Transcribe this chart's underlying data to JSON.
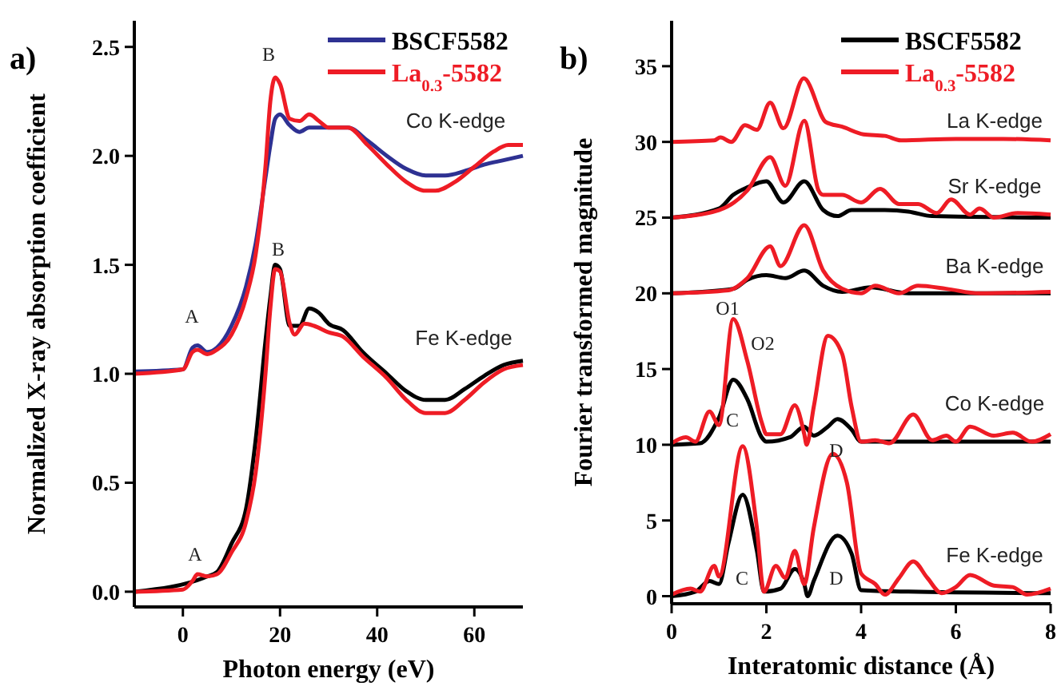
{
  "chart_data": [
    {
      "type": "line",
      "title": "a)",
      "xlabel": "Photon energy (eV)",
      "ylabel": "Normalized X-ray absorption coefficient",
      "xlim": [
        -10,
        70
      ],
      "ylim": [
        -0.07,
        2.62
      ],
      "xticks": [
        0,
        20,
        40,
        60
      ],
      "yticks": [
        {
          "value": 0,
          "label": "0.0"
        },
        {
          "value": 0.5,
          "label": "0.5"
        },
        {
          "value": 1,
          "label": "1.0"
        },
        {
          "value": 1.5,
          "label": "1.5"
        },
        {
          "value": 2,
          "label": "2.0"
        },
        {
          "value": 2.5,
          "label": "2.5"
        }
      ],
      "legend": "top right",
      "series": [
        {
          "name": "BSCF5582",
          "color": "#2e3192",
          "x": [
            -10,
            0,
            2,
            3,
            5,
            7,
            10,
            13,
            15,
            17,
            18,
            19,
            20,
            22,
            24,
            26,
            30,
            34,
            38,
            42,
            46,
            50,
            54,
            58,
            62,
            66,
            70
          ],
          "values": [
            1.01,
            1.02,
            1.12,
            1.13,
            1.1,
            1.12,
            1.22,
            1.4,
            1.6,
            1.9,
            2.05,
            2.17,
            2.19,
            2.14,
            2.11,
            2.13,
            2.13,
            2.13,
            2.07,
            2.0,
            1.94,
            1.91,
            1.91,
            1.93,
            1.96,
            1.98,
            2.0
          ]
        },
        {
          "name": "La$_{0.3}$-5582",
          "color": "#ee1c25",
          "x": [
            -10,
            0,
            2,
            3,
            5,
            7,
            10,
            13,
            15,
            17,
            18,
            19,
            20,
            22,
            24,
            26,
            28,
            30,
            34,
            38,
            42,
            46,
            50,
            52,
            56,
            60,
            64,
            67,
            70
          ],
          "values": [
            1.0,
            1.02,
            1.1,
            1.11,
            1.09,
            1.11,
            1.18,
            1.35,
            1.55,
            1.95,
            2.25,
            2.36,
            2.33,
            2.17,
            2.16,
            2.19,
            2.16,
            2.13,
            2.13,
            2.05,
            1.96,
            1.88,
            1.84,
            1.84,
            1.88,
            1.95,
            2.02,
            2.05,
            2.05
          ]
        },
        {
          "color": "#000000",
          "x": [
            -10,
            0,
            2,
            3,
            5,
            7,
            10,
            13,
            15,
            17,
            18,
            19,
            20,
            22,
            24,
            26,
            28,
            30,
            33,
            37,
            42,
            46,
            50,
            54,
            58,
            62,
            66,
            70
          ],
          "values": [
            0,
            null,
            null,
            null,
            0.07,
            0.09,
            0.22,
            0.38,
            0.7,
            1.15,
            1.35,
            1.5,
            1.48,
            1.22,
            1.22,
            1.3,
            1.28,
            1.23,
            1.2,
            1.1,
            1.0,
            0.92,
            0.88,
            0.88,
            0.93,
            0.99,
            1.04,
            1.06
          ]
        },
        {
          "color": "#ee1c25",
          "x": [
            -10,
            0,
            2,
            3,
            5,
            7,
            10,
            13,
            15,
            17,
            18,
            19,
            20,
            22,
            23,
            25,
            27,
            30,
            33,
            37,
            42,
            46,
            50,
            54,
            58,
            62,
            66,
            70
          ],
          "values": [
            0,
            0.01,
            0.05,
            0.08,
            0.07,
            0.08,
            0.18,
            0.32,
            0.55,
            1.0,
            1.3,
            1.48,
            1.47,
            1.23,
            1.18,
            1.23,
            1.22,
            1.19,
            1.17,
            1.08,
            0.98,
            0.88,
            0.82,
            0.82,
            0.88,
            0.96,
            1.02,
            1.04
          ]
        }
      ],
      "annotations": [
        "A",
        "B",
        "Co K-edge",
        "B",
        "Fe K-edge",
        "A"
      ]
    },
    {
      "type": "line",
      "title": "b)",
      "xlabel": "Interatomic distance (Å)",
      "ylabel": "Fourier transformed magnitude",
      "xlim": [
        0,
        8
      ],
      "ylim": [
        -0.5,
        38
      ],
      "xticks": [
        0,
        2,
        4,
        6,
        8
      ],
      "yticks": [
        0,
        5,
        10,
        15,
        20,
        25,
        30,
        35
      ],
      "legend": "top right",
      "series": [
        {
          "name": "BSCF5582",
          "color": "#000000",
          "x": [
            0,
            0.5,
            0.8,
            1.0,
            1.2,
            1.5,
            1.8,
            1.95,
            2.3,
            2.6,
            2.8,
            2.87,
            3.0,
            3.5,
            3.8,
            4.0,
            5.0,
            8.0
          ],
          "values": [
            0,
            0.3,
            1.0,
            0.8,
            3.5,
            6.7,
            3.0,
            0.3,
            0.5,
            1.8,
            0.8,
            0,
            1.0,
            4.0,
            2.8,
            0.4,
            0.3,
            0.2
          ]
        },
        {
          "name": "La$_{0.3}$-5582",
          "color": "#ee1c25",
          "x": [
            0,
            0.4,
            0.6,
            0.9,
            1.0,
            1.5,
            1.8,
            1.95,
            2.2,
            2.4,
            2.6,
            2.8,
            3.0,
            3.4,
            3.7,
            4.0,
            4.3,
            4.5,
            4.8,
            5.1,
            5.4,
            5.7,
            6.0,
            6.3,
            6.8,
            7.2,
            7.5,
            8.0
          ],
          "values": [
            0.1,
            0.5,
            0.3,
            2.0,
            1.3,
            9.9,
            4.5,
            0.3,
            2.0,
            1.2,
            3.0,
            0.8,
            4.5,
            9.4,
            7.5,
            1.5,
            0.8,
            0.1,
            1.2,
            2.3,
            1.2,
            0.2,
            0.6,
            1.4,
            0.7,
            0.6,
            0.1,
            0.5
          ]
        },
        {
          "color": "#000000",
          "x": [
            0,
            0.6,
            1.0,
            1.3,
            1.6,
            1.9,
            2.0,
            2.5,
            2.8,
            3.0,
            3.3,
            3.5,
            3.8,
            4.0,
            5.0,
            8.0
          ],
          "values": [
            10,
            10.1,
            11.8,
            14.3,
            13.0,
            10.5,
            10.2,
            10.5,
            11.2,
            10.6,
            11.2,
            11.7,
            11.0,
            10.2,
            10.2,
            10.2
          ]
        },
        {
          "color": "#ee1c25",
          "x": [
            0,
            0.3,
            0.5,
            0.8,
            1.0,
            1.3,
            1.6,
            1.9,
            2.0,
            2.3,
            2.6,
            2.8,
            2.85,
            3.0,
            3.3,
            3.6,
            3.8,
            4.0,
            4.3,
            4.6,
            5.1,
            5.5,
            5.8,
            6.0,
            6.3,
            6.8,
            7.2,
            7.6,
            8.0
          ],
          "values": [
            10.1,
            10.5,
            10.2,
            12.2,
            11.3,
            18.3,
            15.5,
            11.5,
            10.7,
            10.7,
            12.6,
            10.7,
            10.0,
            12.5,
            17.2,
            16.0,
            12.5,
            10.2,
            10.3,
            10.1,
            12.0,
            10.3,
            10.6,
            10.2,
            11.2,
            10.6,
            10.8,
            10.2,
            10.7
          ]
        },
        {
          "color": "#000000",
          "x": [
            0,
            1.3,
            1.6,
            2.0,
            2.4,
            2.8,
            3.2,
            3.6,
            4.2,
            5.0,
            8.0
          ],
          "values": [
            20,
            20.3,
            20.9,
            21.2,
            21.0,
            21.5,
            20.5,
            20.1,
            20.4,
            20.0,
            20.0
          ]
        },
        {
          "color": "#ee1c25",
          "x": [
            0,
            1.2,
            1.6,
            2.08,
            2.3,
            2.8,
            3.2,
            3.6,
            4.0,
            4.3,
            4.8,
            5.2,
            5.8,
            6.5,
            8.0
          ],
          "values": [
            20,
            20.2,
            21.0,
            23.1,
            21.8,
            24.5,
            21.5,
            20.3,
            20.0,
            20.5,
            20.0,
            20.5,
            20.3,
            20.0,
            20.1
          ]
        },
        {
          "color": "#000000",
          "x": [
            0,
            1.0,
            1.3,
            1.6,
            2.0,
            2.36,
            2.8,
            3.2,
            3.5,
            3.8,
            4.5,
            5.0,
            5.5,
            8.0
          ],
          "values": [
            25,
            25.6,
            26.5,
            27.0,
            27.4,
            26.0,
            27.4,
            25.5,
            25.1,
            25.5,
            25.5,
            25.4,
            25.1,
            25.0
          ]
        },
        {
          "color": "#ee1c25",
          "x": [
            0,
            1.0,
            1.6,
            2.08,
            2.4,
            2.8,
            3.1,
            3.2,
            3.6,
            4.0,
            4.4,
            4.8,
            5.2,
            5.6,
            5.9,
            6.3,
            6.5,
            6.8,
            7.3,
            8.0
          ],
          "values": [
            25,
            25.5,
            26.8,
            29.0,
            27.1,
            31.4,
            26.8,
            26.5,
            26.5,
            26.0,
            26.9,
            25.9,
            25.9,
            25.3,
            26.2,
            25.2,
            25.6,
            25.0,
            25.3,
            25.2
          ]
        },
        {
          "color": "#ee1c25",
          "x": [
            0,
            0.9,
            1.03,
            1.26,
            1.55,
            1.8,
            2.08,
            2.36,
            2.79,
            3.26,
            3.6,
            4.05,
            4.5,
            4.84,
            6.0,
            7.0,
            8.0
          ],
          "values": [
            30,
            30.1,
            30.3,
            30.0,
            31.1,
            30.8,
            32.6,
            30.9,
            34.2,
            31.3,
            31.0,
            30.5,
            30.4,
            30.1,
            30.2,
            30.2,
            30.1
          ]
        }
      ],
      "annotations": [
        "La K-edge",
        "Sr K-edge",
        "Ba K-edge",
        "O1",
        "O2",
        "C",
        "D",
        "Co K-edge",
        "C",
        "D",
        "Fe K-edge"
      ]
    }
  ]
}
